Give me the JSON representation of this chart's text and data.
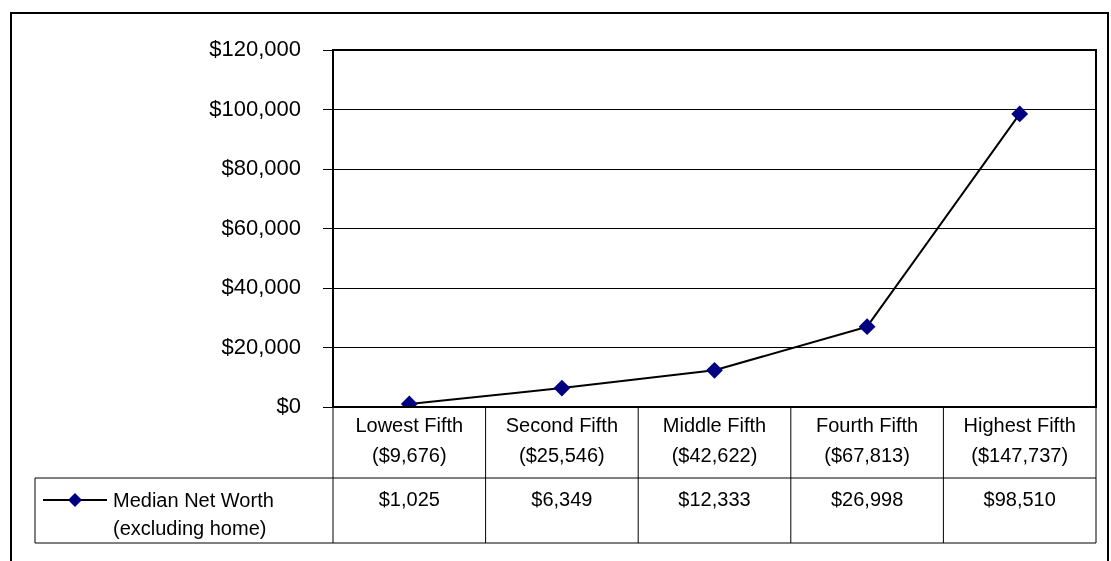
{
  "chart_data": {
    "type": "line",
    "categories": [
      "Lowest Fifth\n($9,676)",
      "Second Fifth\n($25,546)",
      "Middle Fifth\n($42,622)",
      "Fourth Fifth\n($67,813)",
      "Highest Fifth\n($147,737)"
    ],
    "series": [
      {
        "name": "Median Net Worth (excluding home)",
        "color": "#000080",
        "values": [
          1025,
          6349,
          12333,
          26998,
          98510
        ],
        "value_labels": [
          "$1,025",
          "$6,349",
          "$12,333",
          "$26,998",
          "$98,510"
        ]
      }
    ],
    "ylim": [
      0,
      120000
    ],
    "yticks": [
      {
        "value": 0,
        "label": "$0"
      },
      {
        "value": 20000,
        "label": "$20,000"
      },
      {
        "value": 40000,
        "label": "$40,000"
      },
      {
        "value": 60000,
        "label": "$60,000"
      },
      {
        "value": 80000,
        "label": "$80,000"
      },
      {
        "value": 100000,
        "label": "$100,000"
      },
      {
        "value": 120000,
        "label": "$120,000"
      }
    ],
    "grid": "y",
    "marker": "diamond",
    "line_style": "solid",
    "legend": "bottom left"
  }
}
